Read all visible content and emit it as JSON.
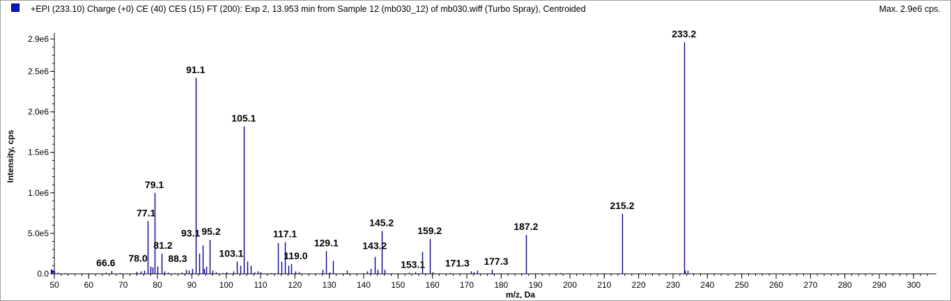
{
  "header": {
    "title": "+EPI (233.10) Charge (+0) CE (40) CES (15) FT (200): Exp 2, 13.953 min from Sample 12 (mb030_12) of mb030.wiff (Turbo Spray), Centroided",
    "max_text": "Max. 2.9e6 cps.",
    "series_color": "#0a14c8"
  },
  "chart_data": {
    "type": "bar",
    "subtype": "mass-spectrum-stick-plot",
    "xlabel": "m/z, Da",
    "ylabel": "Intensity, cps",
    "xlim": [
      50,
      305
    ],
    "ylim": [
      0,
      2900000
    ],
    "x_ticks": [
      50,
      60,
      70,
      80,
      90,
      100,
      110,
      120,
      130,
      140,
      150,
      160,
      170,
      180,
      190,
      200,
      210,
      220,
      230,
      240,
      250,
      260,
      270,
      280,
      290,
      300
    ],
    "y_ticks": [
      {
        "value": 0,
        "label": "0.0"
      },
      {
        "value": 500000,
        "label": "5.0e5"
      },
      {
        "value": 1000000,
        "label": "1.0e6"
      },
      {
        "value": 1500000,
        "label": "1.5e6"
      },
      {
        "value": 2000000,
        "label": "2.0e6"
      },
      {
        "value": 2500000,
        "label": "2.5e6"
      },
      {
        "value": 2900000,
        "label": "2.9e6"
      }
    ],
    "grid": false,
    "line_color": "#00008b",
    "peaks": [
      {
        "mz": 50.1,
        "intensity": 30000
      },
      {
        "mz": 51.1,
        "intensity": 15000
      },
      {
        "mz": 53.1,
        "intensity": 10000
      },
      {
        "mz": 65.1,
        "intensity": 15000
      },
      {
        "mz": 66.6,
        "intensity": 35000
      },
      {
        "mz": 69.0,
        "intensity": 10000
      },
      {
        "mz": 74.0,
        "intensity": 25000
      },
      {
        "mz": 75.1,
        "intensity": 30000
      },
      {
        "mz": 76.1,
        "intensity": 40000
      },
      {
        "mz": 77.1,
        "intensity": 650000
      },
      {
        "mz": 78.0,
        "intensity": 90000
      },
      {
        "mz": 78.6,
        "intensity": 80000
      },
      {
        "mz": 79.1,
        "intensity": 1000000
      },
      {
        "mz": 80.1,
        "intensity": 90000
      },
      {
        "mz": 81.2,
        "intensity": 250000
      },
      {
        "mz": 82.1,
        "intensity": 30000
      },
      {
        "mz": 83.1,
        "intensity": 15000
      },
      {
        "mz": 85.0,
        "intensity": 10000
      },
      {
        "mz": 87.0,
        "intensity": 15000
      },
      {
        "mz": 88.3,
        "intensity": 50000
      },
      {
        "mz": 89.1,
        "intensity": 40000
      },
      {
        "mz": 90.1,
        "intensity": 60000
      },
      {
        "mz": 91.1,
        "intensity": 2420000
      },
      {
        "mz": 92.1,
        "intensity": 250000
      },
      {
        "mz": 93.1,
        "intensity": 350000
      },
      {
        "mz": 93.6,
        "intensity": 60000
      },
      {
        "mz": 94.1,
        "intensity": 90000
      },
      {
        "mz": 95.2,
        "intensity": 420000
      },
      {
        "mz": 96.1,
        "intensity": 40000
      },
      {
        "mz": 97.1,
        "intensity": 20000
      },
      {
        "mz": 99.1,
        "intensity": 10000
      },
      {
        "mz": 100.1,
        "intensity": 20000
      },
      {
        "mz": 102.0,
        "intensity": 30000
      },
      {
        "mz": 103.1,
        "intensity": 150000
      },
      {
        "mz": 104.1,
        "intensity": 100000
      },
      {
        "mz": 105.1,
        "intensity": 1820000
      },
      {
        "mz": 106.1,
        "intensity": 150000
      },
      {
        "mz": 107.1,
        "intensity": 100000
      },
      {
        "mz": 108.1,
        "intensity": 20000
      },
      {
        "mz": 109.1,
        "intensity": 30000
      },
      {
        "mz": 110.1,
        "intensity": 20000
      },
      {
        "mz": 113.1,
        "intensity": 10000
      },
      {
        "mz": 115.1,
        "intensity": 380000
      },
      {
        "mz": 116.1,
        "intensity": 150000
      },
      {
        "mz": 117.1,
        "intensity": 390000
      },
      {
        "mz": 118.1,
        "intensity": 100000
      },
      {
        "mz": 119.0,
        "intensity": 120000
      },
      {
        "mz": 120.1,
        "intensity": 30000
      },
      {
        "mz": 121.1,
        "intensity": 20000
      },
      {
        "mz": 128.1,
        "intensity": 50000
      },
      {
        "mz": 129.1,
        "intensity": 280000
      },
      {
        "mz": 130.1,
        "intensity": 20000
      },
      {
        "mz": 131.1,
        "intensity": 160000
      },
      {
        "mz": 135.1,
        "intensity": 40000
      },
      {
        "mz": 141.1,
        "intensity": 30000
      },
      {
        "mz": 142.1,
        "intensity": 60000
      },
      {
        "mz": 143.2,
        "intensity": 210000
      },
      {
        "mz": 144.1,
        "intensity": 50000
      },
      {
        "mz": 145.2,
        "intensity": 530000
      },
      {
        "mz": 146.1,
        "intensity": 50000
      },
      {
        "mz": 153.1,
        "intensity": 15000
      },
      {
        "mz": 155.1,
        "intensity": 20000
      },
      {
        "mz": 157.1,
        "intensity": 270000
      },
      {
        "mz": 159.2,
        "intensity": 430000
      },
      {
        "mz": 160.1,
        "intensity": 20000
      },
      {
        "mz": 165.1,
        "intensity": 10000
      },
      {
        "mz": 171.3,
        "intensity": 30000
      },
      {
        "mz": 172.1,
        "intensity": 20000
      },
      {
        "mz": 173.1,
        "intensity": 40000
      },
      {
        "mz": 177.3,
        "intensity": 50000
      },
      {
        "mz": 187.2,
        "intensity": 480000
      },
      {
        "mz": 197.1,
        "intensity": 10000
      },
      {
        "mz": 215.2,
        "intensity": 740000
      },
      {
        "mz": 233.2,
        "intensity": 2860000
      },
      {
        "mz": 233.5,
        "intensity": 40000
      },
      {
        "mz": 234.2,
        "intensity": 40000
      }
    ],
    "labels": [
      {
        "text": "66.6",
        "mz": 66.6
      },
      {
        "text": "78.0",
        "mz": 78.0
      },
      {
        "text": "77.1",
        "mz": 77.1
      },
      {
        "text": "79.1",
        "mz": 79.1
      },
      {
        "text": "81.2",
        "mz": 81.2
      },
      {
        "text": "88.3",
        "mz": 88.3
      },
      {
        "text": "91.1",
        "mz": 91.1
      },
      {
        "text": "93.1",
        "mz": 93.1
      },
      {
        "text": "95.2",
        "mz": 95.2
      },
      {
        "text": "103.1",
        "mz": 103.1
      },
      {
        "text": "105.1",
        "mz": 105.1
      },
      {
        "text": "117.1",
        "mz": 117.1
      },
      {
        "text": "119.0",
        "mz": 119.0
      },
      {
        "text": "129.1",
        "mz": 129.1
      },
      {
        "text": "143.2",
        "mz": 143.2
      },
      {
        "text": "145.2",
        "mz": 145.2
      },
      {
        "text": "153.1",
        "mz": 153.1
      },
      {
        "text": "159.2",
        "mz": 159.2
      },
      {
        "text": "171.3",
        "mz": 171.3
      },
      {
        "text": "177.3",
        "mz": 177.3
      },
      {
        "text": "187.2",
        "mz": 187.2
      },
      {
        "text": "215.2",
        "mz": 215.2
      },
      {
        "text": "233.2",
        "mz": 233.2
      }
    ]
  }
}
